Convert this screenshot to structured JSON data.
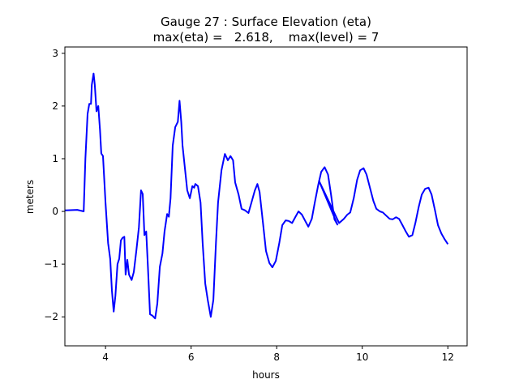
{
  "chart_data": {
    "type": "line",
    "title": "Gauge 27 : Surface Elevation (eta)",
    "subtitle": "max(eta) =   2.618,    max(level) = 7",
    "xlabel": "hours",
    "ylabel": "meters",
    "xlim": [
      3.05,
      12.45
    ],
    "ylim": [
      -2.55,
      3.12
    ],
    "xticks": [
      4,
      6,
      8,
      10,
      12
    ],
    "xtick_labels": [
      "4",
      "6",
      "8",
      "10",
      "12"
    ],
    "yticks": [
      3,
      2,
      1,
      0,
      -1,
      -2
    ],
    "ytick_labels": [
      "3",
      "2",
      "1",
      "0",
      "−1",
      "−2"
    ],
    "grid": false,
    "series": [
      {
        "name": "eta",
        "color": "#0000ff",
        "x": [
          3.05,
          3.34,
          3.49,
          3.53,
          3.58,
          3.62,
          3.66,
          3.68,
          3.72,
          3.75,
          3.79,
          3.83,
          3.87,
          3.9,
          3.94,
          4.0,
          4.06,
          4.11,
          4.15,
          4.19,
          4.23,
          4.28,
          4.32,
          4.36,
          4.4,
          4.44,
          4.47,
          4.51,
          4.55,
          4.61,
          4.66,
          4.72,
          4.78,
          4.83,
          4.87,
          4.91,
          4.95,
          4.99,
          5.04,
          5.1,
          5.16,
          5.21,
          5.27,
          5.33,
          5.38,
          5.44,
          5.48,
          5.52,
          5.57,
          5.63,
          5.69,
          5.73,
          5.77,
          5.8,
          5.86,
          5.91,
          5.97,
          6.03,
          6.07,
          6.1,
          6.16,
          6.22,
          6.27,
          6.33,
          6.39,
          6.46,
          6.52,
          6.58,
          6.63,
          6.71,
          6.79,
          6.86,
          6.92,
          6.98,
          7.03,
          7.11,
          7.18,
          7.26,
          7.34,
          7.41,
          7.49,
          7.55,
          7.6,
          7.68,
          7.75,
          7.83,
          7.9,
          7.98,
          8.06,
          8.13,
          8.21,
          8.28,
          8.36,
          8.44,
          8.51,
          8.59,
          8.66,
          8.74,
          8.82,
          8.89,
          8.97,
          9.04,
          9.12,
          9.2,
          9.27,
          9.35,
          9.42,
          8.99,
          9.46,
          9.57,
          9.65,
          9.72,
          9.8,
          9.88,
          9.95,
          10.03,
          10.1,
          10.18,
          10.26,
          10.33,
          10.41,
          10.48,
          10.56,
          10.64,
          10.71,
          10.79,
          10.86,
          10.94,
          11.01,
          11.09,
          11.17,
          11.24,
          11.32,
          11.39,
          11.47,
          11.55,
          11.62,
          11.7,
          11.77,
          11.85,
          11.92,
          12.0
        ],
        "y": [
          0.02,
          0.03,
          0.0,
          1.0,
          1.85,
          2.04,
          2.04,
          2.4,
          2.618,
          2.4,
          1.9,
          2.0,
          1.55,
          1.1,
          1.05,
          0.17,
          -0.6,
          -0.9,
          -1.5,
          -1.9,
          -1.6,
          -1.0,
          -0.9,
          -0.55,
          -0.5,
          -0.48,
          -1.2,
          -0.92,
          -1.2,
          -1.3,
          -1.15,
          -0.75,
          -0.3,
          0.4,
          0.33,
          -0.45,
          -0.38,
          -1.05,
          -1.95,
          -1.98,
          -2.03,
          -1.75,
          -1.05,
          -0.8,
          -0.38,
          -0.05,
          -0.1,
          0.25,
          1.25,
          1.6,
          1.7,
          2.1,
          1.7,
          1.25,
          0.78,
          0.4,
          0.25,
          0.48,
          0.45,
          0.52,
          0.48,
          0.17,
          -0.6,
          -1.37,
          -1.68,
          -2.0,
          -1.68,
          -0.6,
          0.17,
          0.78,
          1.09,
          0.97,
          1.05,
          0.97,
          0.55,
          0.32,
          0.05,
          0.02,
          -0.03,
          0.17,
          0.4,
          0.52,
          0.37,
          -0.22,
          -0.75,
          -0.98,
          -1.06,
          -0.94,
          -0.6,
          -0.26,
          -0.17,
          -0.18,
          -0.22,
          -0.1,
          0.0,
          -0.06,
          -0.17,
          -0.29,
          -0.14,
          0.17,
          0.5,
          0.75,
          0.84,
          0.7,
          0.32,
          -0.15,
          -0.25,
          0.58,
          -0.22,
          -0.14,
          -0.06,
          -0.02,
          0.25,
          0.6,
          0.78,
          0.82,
          0.7,
          0.45,
          0.2,
          0.05,
          0.0,
          -0.02,
          -0.08,
          -0.14,
          -0.15,
          -0.11,
          -0.14,
          -0.26,
          -0.37,
          -0.48,
          -0.45,
          -0.22,
          0.09,
          0.32,
          0.43,
          0.45,
          0.32,
          0.02,
          -0.26,
          -0.42,
          -0.52,
          -0.62
        ]
      }
    ]
  }
}
